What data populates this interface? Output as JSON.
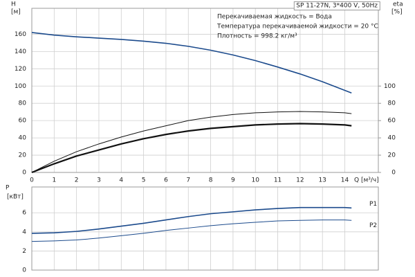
{
  "chart_data": [
    {
      "type": "line",
      "title": "SP 11-27N, 3*400 V, 50Hz",
      "annotations": [
        "Перекачиваемая жидкость = Вода",
        "Температура перекачиваемой жидкости = 20 °C",
        "Плотность = 998.2 кг/м³"
      ],
      "ylabel": "H",
      "yunit": "[м]",
      "y2label": "eta",
      "y2unit": "[%]",
      "xlabel": "Q [м³/ч]",
      "x": [
        0,
        1,
        2,
        3,
        4,
        5,
        6,
        7,
        8,
        9,
        10,
        11,
        12,
        13,
        14,
        14.3
      ],
      "series": [
        {
          "color": "#1b4a8c",
          "width": 1.6,
          "values": [
            162,
            159,
            157,
            155.5,
            154,
            152,
            149.5,
            146,
            141.5,
            136,
            129.5,
            122,
            114,
            105,
            95,
            92
          ]
        },
        {
          "color": "#111111",
          "width": 1,
          "axis": "y2",
          "values": [
            0,
            13,
            24,
            33,
            41,
            48,
            54,
            60,
            64,
            67,
            69,
            70,
            70.5,
            70,
            69,
            68
          ]
        },
        {
          "color": "#111111",
          "width": 2.2,
          "axis": "y2",
          "values": [
            0,
            10,
            19,
            26,
            33,
            39,
            44,
            48,
            51,
            53,
            55,
            56,
            56.5,
            56,
            55,
            54
          ]
        }
      ],
      "xlim": [
        0,
        15.5
      ],
      "xticks": [
        0,
        1,
        2,
        3,
        4,
        5,
        6,
        7,
        8,
        9,
        10,
        11,
        12,
        13,
        14
      ],
      "ylim": [
        0,
        190
      ],
      "yticks": [
        0,
        20,
        40,
        60,
        80,
        100,
        120,
        140,
        160
      ],
      "y2lim": [
        0,
        190
      ],
      "y2ticks": [
        0,
        20,
        40,
        60,
        80,
        100
      ],
      "grid": true
    },
    {
      "type": "line",
      "ylabel": "P",
      "yunit": "[кВт]",
      "x": [
        0,
        1,
        2,
        3,
        4,
        5,
        6,
        7,
        8,
        9,
        10,
        11,
        12,
        13,
        14,
        14.3
      ],
      "series": [
        {
          "name": "P1",
          "color": "#1b4a8c",
          "width": 1.6,
          "values": [
            3.85,
            3.9,
            4.05,
            4.3,
            4.6,
            4.9,
            5.25,
            5.6,
            5.9,
            6.1,
            6.3,
            6.45,
            6.55,
            6.55,
            6.55,
            6.5
          ]
        },
        {
          "name": "P2",
          "color": "#1b4a8c",
          "width": 1,
          "values": [
            3.0,
            3.05,
            3.15,
            3.35,
            3.6,
            3.85,
            4.15,
            4.4,
            4.65,
            4.85,
            5.0,
            5.15,
            5.2,
            5.25,
            5.25,
            5.2
          ]
        }
      ],
      "xlim": [
        0,
        15.5
      ],
      "xticks": [
        0,
        1,
        2,
        3,
        4,
        5,
        6,
        7,
        8,
        9,
        10,
        11,
        12,
        13,
        14
      ],
      "xtick_labels": false,
      "ylim": [
        0,
        8.7
      ],
      "yticks": [
        0,
        2,
        4,
        6
      ],
      "grid": true
    }
  ]
}
